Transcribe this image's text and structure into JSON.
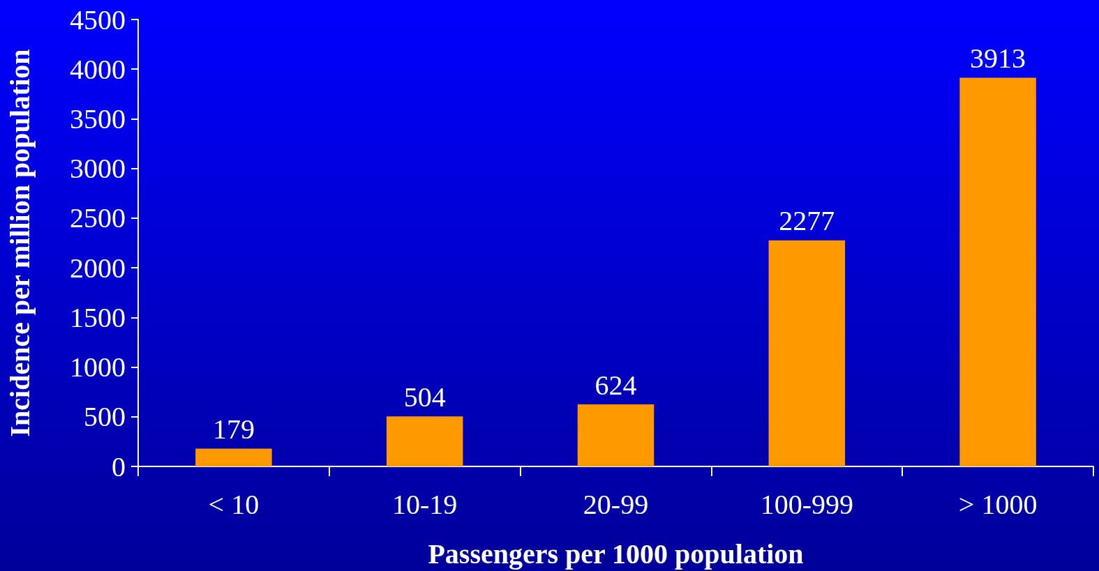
{
  "chart_data": {
    "type": "bar",
    "xlabel": "Passengers per 1000 population",
    "ylabel": "Incidence per million population",
    "categories": [
      "< 10",
      "10-19",
      "20-99",
      "100-999",
      "> 1000"
    ],
    "values": [
      179,
      504,
      624,
      2277,
      3913
    ],
    "color": "#ff9900",
    "ylim": [
      0,
      4500
    ],
    "yticks": [
      0,
      500,
      1000,
      1500,
      2000,
      2500,
      3000,
      3500,
      4000,
      4500
    ],
    "data_labels": true,
    "grid": false
  }
}
